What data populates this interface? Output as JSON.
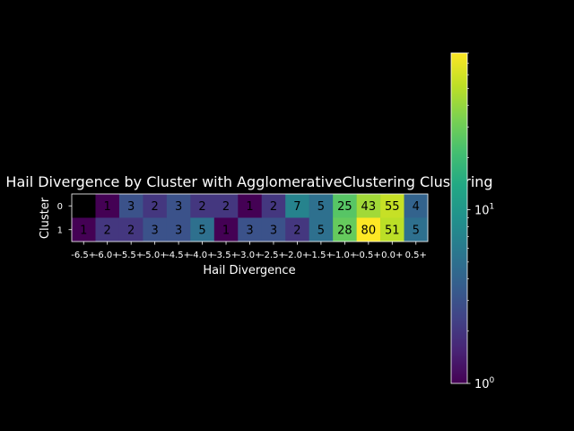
{
  "chart_data": {
    "type": "heatmap",
    "title": "Hail Divergence by Cluster with AgglomerativeClustering Clustering",
    "xlabel": "Hail Divergence",
    "ylabel": "Cluster",
    "x_categories": [
      "-6.5+",
      "-6.0+",
      "-5.5+",
      "-5.0+",
      "-4.5+",
      "-4.0+",
      "-3.5+",
      "-3.0+",
      "-2.5+",
      "-2.0+",
      "-1.5+",
      "-1.0+",
      "-0.5+",
      "0.0+",
      "0.5+"
    ],
    "y_categories": [
      "0",
      "1"
    ],
    "values": [
      [
        null,
        1,
        3,
        2,
        3,
        2,
        2,
        1,
        2,
        7,
        5,
        25,
        43,
        55,
        4
      ],
      [
        1,
        2,
        2,
        3,
        3,
        5,
        1,
        3,
        3,
        2,
        5,
        28,
        80,
        51,
        5
      ]
    ],
    "colorscale": "viridis",
    "color_scale_type": "log",
    "color_range": [
      1,
      80
    ],
    "missing_color": "#000000",
    "colorbar_ticks": [
      {
        "value": 1,
        "base": "10",
        "exp": "0"
      },
      {
        "value": 10,
        "base": "10",
        "exp": "1"
      }
    ]
  }
}
